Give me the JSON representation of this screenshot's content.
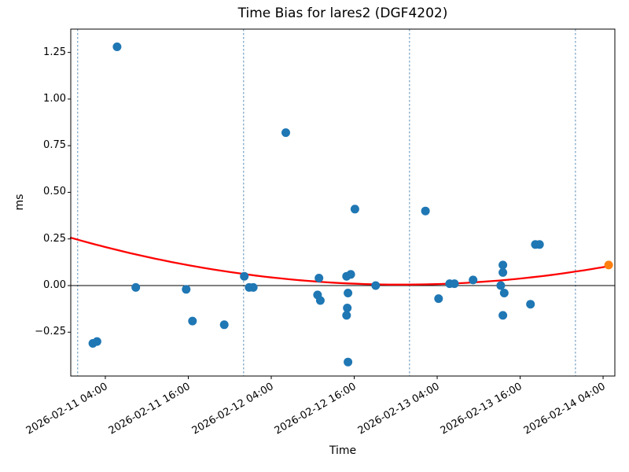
{
  "title": "Time Bias for lares2 (DGF4202)",
  "xlabel": "Time",
  "ylabel": "ms",
  "colors": {
    "point_blue": "#1f77b4",
    "point_orange": "#ff7f0e",
    "fit_line_red": "#ff0000",
    "day_gridline_blue": "#5b8db5",
    "axis_black": "#000000"
  },
  "chart_data": {
    "type": "scatter",
    "title": "Time Bias for lares2 (DGF4202)",
    "xlabel": "Time",
    "ylabel": "ms",
    "x_unit": "hours since 2026-02-11 00:00",
    "xlim": [
      -1.0,
      77.7
    ],
    "ylim": [
      -0.485,
      1.375
    ],
    "grid": "vertical dashed lines at day boundaries only",
    "legend": "none",
    "x_ticks": [
      {
        "t": 4,
        "label": "2026-02-11 04:00"
      },
      {
        "t": 16,
        "label": "2026-02-11 16:00"
      },
      {
        "t": 28,
        "label": "2026-02-12 04:00"
      },
      {
        "t": 40,
        "label": "2026-02-12 16:00"
      },
      {
        "t": 52,
        "label": "2026-02-13 04:00"
      },
      {
        "t": 64,
        "label": "2026-02-13 16:00"
      },
      {
        "t": 76,
        "label": "2026-02-14 04:00"
      }
    ],
    "y_ticks": [
      {
        "v": -0.25,
        "label": "−0.25"
      },
      {
        "v": 0.0,
        "label": "0.00"
      },
      {
        "v": 0.25,
        "label": "0.25"
      },
      {
        "v": 0.5,
        "label": "0.50"
      },
      {
        "v": 0.75,
        "label": "0.75"
      },
      {
        "v": 1.0,
        "label": "1.00"
      },
      {
        "v": 1.25,
        "label": "1.25"
      }
    ],
    "day_gridlines": {
      "t": [
        0,
        24,
        48,
        72
      ],
      "dates": [
        "2026-02-11",
        "2026-02-12",
        "2026-02-13",
        "2026-02-14"
      ],
      "color": "#5b8db5"
    },
    "zero_line": {
      "y": 0.0,
      "color": "#000000"
    },
    "series": [
      {
        "name": "time-bias-points",
        "color": "#1f77b4",
        "marker_name": "data-point",
        "points": [
          {
            "t": 2.2,
            "time": "2026-02-11 02:12",
            "y": -0.31
          },
          {
            "t": 2.8,
            "time": "2026-02-11 02:48",
            "y": -0.3
          },
          {
            "t": 5.7,
            "time": "2026-02-11 05:42",
            "y": 1.28
          },
          {
            "t": 8.4,
            "time": "2026-02-11 08:24",
            "y": -0.01
          },
          {
            "t": 15.7,
            "time": "2026-02-11 15:42",
            "y": -0.02
          },
          {
            "t": 16.6,
            "time": "2026-02-11 16:36",
            "y": -0.19
          },
          {
            "t": 21.2,
            "time": "2026-02-11 21:12",
            "y": -0.21
          },
          {
            "t": 24.1,
            "time": "2026-02-12 00:06",
            "y": 0.05
          },
          {
            "t": 24.8,
            "time": "2026-02-12 00:48",
            "y": -0.01
          },
          {
            "t": 25.4,
            "time": "2026-02-12 01:24",
            "y": -0.01
          },
          {
            "t": 30.1,
            "time": "2026-02-12 06:06",
            "y": 0.82
          },
          {
            "t": 34.7,
            "time": "2026-02-12 10:42",
            "y": -0.05
          },
          {
            "t": 34.9,
            "time": "2026-02-12 10:54",
            "y": 0.04
          },
          {
            "t": 35.1,
            "time": "2026-02-12 11:06",
            "y": -0.08
          },
          {
            "t": 38.9,
            "time": "2026-02-12 14:54",
            "y": 0.05
          },
          {
            "t": 38.9,
            "time": "2026-02-12 14:54",
            "y": -0.16
          },
          {
            "t": 39.0,
            "time": "2026-02-12 15:00",
            "y": -0.12
          },
          {
            "t": 39.1,
            "time": "2026-02-12 15:06",
            "y": -0.04
          },
          {
            "t": 39.1,
            "time": "2026-02-12 15:06",
            "y": -0.41
          },
          {
            "t": 39.5,
            "time": "2026-02-12 15:30",
            "y": 0.06
          },
          {
            "t": 40.1,
            "time": "2026-02-12 16:06",
            "y": 0.41
          },
          {
            "t": 43.1,
            "time": "2026-02-12 19:06",
            "y": 0.0
          },
          {
            "t": 50.3,
            "time": "2026-02-13 02:18",
            "y": 0.4
          },
          {
            "t": 52.2,
            "time": "2026-02-13 04:12",
            "y": -0.07
          },
          {
            "t": 53.8,
            "time": "2026-02-13 05:48",
            "y": 0.01
          },
          {
            "t": 54.5,
            "time": "2026-02-13 06:30",
            "y": 0.01
          },
          {
            "t": 57.2,
            "time": "2026-02-13 09:12",
            "y": 0.03
          },
          {
            "t": 61.2,
            "time": "2026-02-13 13:12",
            "y": 0.0
          },
          {
            "t": 61.5,
            "time": "2026-02-13 13:30",
            "y": 0.11
          },
          {
            "t": 61.5,
            "time": "2026-02-13 13:30",
            "y": 0.07
          },
          {
            "t": 61.5,
            "time": "2026-02-13 13:30",
            "y": -0.16
          },
          {
            "t": 61.7,
            "time": "2026-02-13 13:42",
            "y": -0.04
          },
          {
            "t": 65.5,
            "time": "2026-02-13 17:30",
            "y": -0.1
          },
          {
            "t": 66.2,
            "time": "2026-02-13 18:12",
            "y": 0.22
          },
          {
            "t": 66.8,
            "time": "2026-02-13 18:48",
            "y": 0.22
          }
        ]
      },
      {
        "name": "latest-point",
        "color": "#ff7f0e",
        "marker_name": "latest-data-point",
        "points": [
          {
            "t": 76.8,
            "time": "2026-02-14 04:48",
            "y": 0.11
          }
        ]
      }
    ],
    "fit_curve": {
      "type": "quadratic",
      "color": "#ff0000",
      "a": 0.00011,
      "vertex_t": 46.8,
      "min_y": 0.005,
      "t_start": -1.0,
      "t_end": 76.8,
      "value_at_left_edge": 0.26,
      "value_at_right_end": 0.11
    }
  }
}
